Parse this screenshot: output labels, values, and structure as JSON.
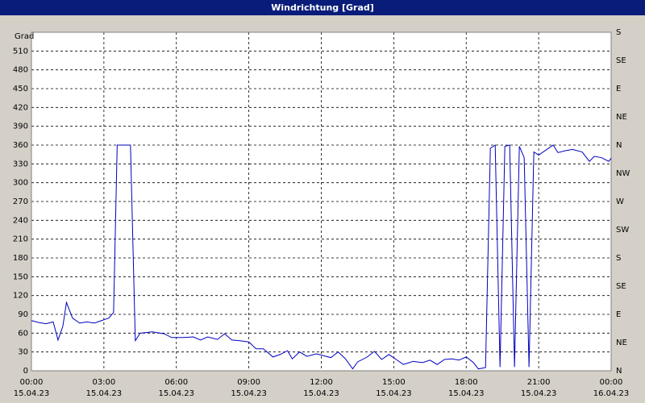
{
  "chart_data": {
    "type": "line",
    "title": "Windrichtung [Grad]",
    "y_label": "Grad",
    "x": [
      0,
      0.3,
      0.6,
      0.9,
      1.1,
      1.3,
      1.45,
      1.7,
      2.0,
      2.3,
      2.6,
      2.9,
      3.2,
      3.4,
      3.55,
      4.0,
      4.1,
      4.3,
      4.5,
      5.0,
      5.5,
      5.8,
      6.3,
      6.7,
      7.0,
      7.3,
      7.7,
      8.0,
      8.3,
      8.6,
      9.0,
      9.3,
      9.6,
      10.0,
      10.3,
      10.6,
      10.8,
      11.1,
      11.4,
      11.8,
      12.1,
      12.4,
      12.7,
      13.0,
      13.3,
      13.5,
      13.9,
      14.2,
      14.5,
      14.8,
      15.1,
      15.4,
      15.8,
      16.2,
      16.5,
      16.8,
      17.1,
      17.4,
      17.7,
      18.0,
      18.3,
      18.5,
      18.8,
      19.0,
      19.2,
      19.4,
      19.6,
      19.8,
      20.0,
      20.2,
      20.4,
      20.6,
      20.8,
      21.0,
      21.3,
      21.6,
      21.8,
      22.1,
      22.4,
      22.8,
      23.1,
      23.3,
      23.6,
      23.9,
      24.0
    ],
    "series": [
      {
        "color": "#0000c0",
        "values": [
          80,
          77,
          75,
          78,
          49,
          71,
          109,
          84,
          76,
          78,
          76,
          80,
          84,
          93,
          360,
          360,
          360,
          48,
          60,
          62,
          59,
          53,
          53,
          54,
          49,
          54,
          50,
          59,
          49,
          48,
          46,
          35,
          35,
          22,
          26,
          32,
          19,
          30,
          23,
          27,
          24,
          21,
          30,
          19,
          3,
          14,
          22,
          31,
          18,
          26,
          18,
          10,
          15,
          13,
          17,
          10,
          18,
          19,
          17,
          22,
          13,
          3,
          5,
          355,
          360,
          6,
          358,
          360,
          6,
          358,
          340,
          6,
          349,
          344,
          352,
          360,
          348,
          351,
          353,
          349,
          334,
          342,
          340,
          334,
          339
        ]
      }
    ],
    "xlim": [
      0,
      24
    ],
    "xticks": [
      {
        "value": 0,
        "label": "00:00\n15.04.23"
      },
      {
        "value": 3,
        "label": "03:00\n15.04.23"
      },
      {
        "value": 6,
        "label": "06:00\n15.04.23"
      },
      {
        "value": 9,
        "label": "09:00\n15.04.23"
      },
      {
        "value": 12,
        "label": "12:00\n15.04.23"
      },
      {
        "value": 15,
        "label": "15:00\n15.04.23"
      },
      {
        "value": 18,
        "label": "18:00\n15.04.23"
      },
      {
        "value": 21,
        "label": "21:00\n15.04.23"
      },
      {
        "value": 24,
        "label": "00:00\n16.04.23"
      }
    ],
    "ylim": [
      0,
      540
    ],
    "yticks": [
      0,
      30,
      60,
      90,
      120,
      150,
      180,
      210,
      240,
      270,
      300,
      330,
      360,
      390,
      420,
      450,
      480,
      510
    ],
    "y2lim": [
      0,
      540
    ],
    "y2ticks": [
      {
        "value": 0,
        "label": "N"
      },
      {
        "value": 45,
        "label": "NE"
      },
      {
        "value": 90,
        "label": "E"
      },
      {
        "value": 135,
        "label": "SE"
      },
      {
        "value": 180,
        "label": "S"
      },
      {
        "value": 225,
        "label": "SW"
      },
      {
        "value": 270,
        "label": "W"
      },
      {
        "value": 315,
        "label": "NW"
      },
      {
        "value": 360,
        "label": "N"
      },
      {
        "value": 405,
        "label": "NE"
      },
      {
        "value": 450,
        "label": "E"
      },
      {
        "value": 495,
        "label": "SE"
      },
      {
        "value": 540,
        "label": "S"
      }
    ],
    "grid": true
  }
}
